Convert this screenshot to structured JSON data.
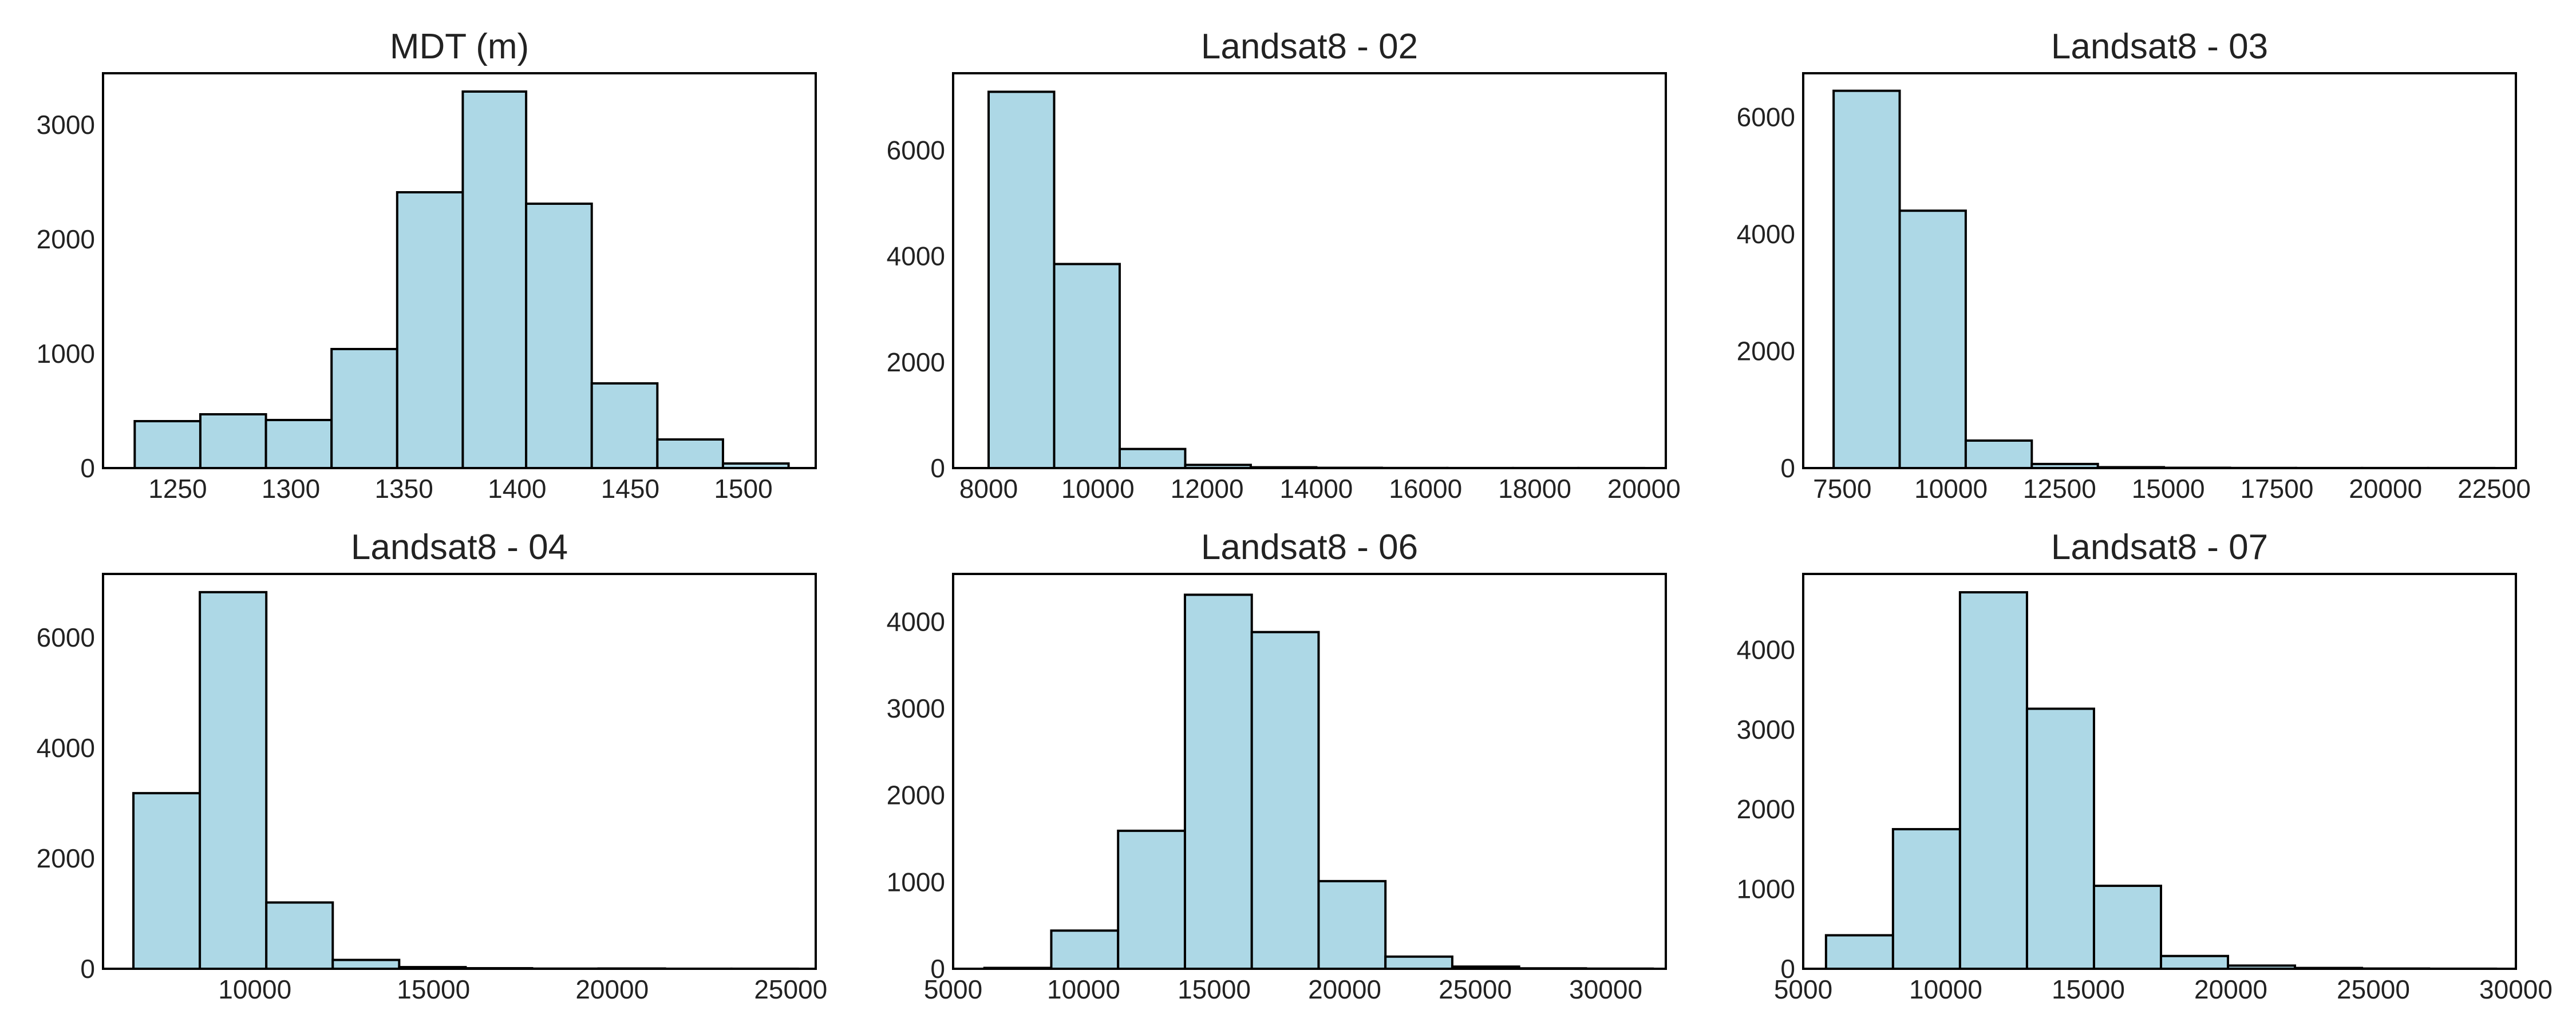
{
  "style": {
    "bar_fill": "#add8e6",
    "bar_edge": "#000000",
    "background": "#ffffff"
  },
  "chart_data": [
    {
      "type": "histogram",
      "title": "MDT (m)",
      "xlim": [
        1217,
        1532
      ],
      "ylim": [
        0,
        3450
      ],
      "xticks": [
        1250,
        1300,
        1350,
        1400,
        1450,
        1500
      ],
      "yticks": [
        0,
        1000,
        2000,
        3000
      ],
      "bin_edges": [
        1231,
        1260,
        1289,
        1318,
        1347,
        1376,
        1404,
        1433,
        1462,
        1491,
        1520
      ],
      "values": [
        410,
        470,
        420,
        1040,
        2410,
        3290,
        2310,
        740,
        250,
        40
      ],
      "grid": false
    },
    {
      "type": "histogram",
      "title": "Landsat8 - 02",
      "xlim": [
        7350,
        20400
      ],
      "ylim": [
        0,
        7450
      ],
      "xticks": [
        8000,
        10000,
        12000,
        14000,
        16000,
        18000,
        20000
      ],
      "yticks": [
        0,
        2000,
        4000,
        6000
      ],
      "bin_edges": [
        8000,
        9200,
        10400,
        11600,
        12800,
        14000,
        15200,
        16400,
        17600,
        18800,
        20000
      ],
      "values": [
        7100,
        3850,
        360,
        60,
        15,
        5,
        2,
        1,
        1,
        1
      ],
      "grid": false
    },
    {
      "type": "histogram",
      "title": "Landsat8 - 03",
      "xlim": [
        6600,
        23000
      ],
      "ylim": [
        0,
        6750
      ],
      "xticks": [
        7500,
        10000,
        12500,
        15000,
        17500,
        20000,
        22500
      ],
      "yticks": [
        0,
        2000,
        4000,
        6000
      ],
      "bin_edges": [
        7300,
        8820,
        10340,
        11860,
        13380,
        14900,
        16420,
        17940,
        19460,
        20980,
        22500
      ],
      "values": [
        6450,
        4400,
        470,
        70,
        15,
        5,
        2,
        1,
        1,
        1
      ],
      "grid": false
    },
    {
      "type": "histogram",
      "title": "Landsat8 - 04",
      "xlim": [
        5750,
        25700
      ],
      "ylim": [
        0,
        7150
      ],
      "xticks": [
        10000,
        15000,
        20000,
        25000
      ],
      "yticks": [
        0,
        2000,
        4000,
        6000
      ],
      "bin_edges": [
        6600,
        8460,
        10320,
        12180,
        14040,
        15900,
        17760,
        19620,
        21480,
        23340,
        25200
      ],
      "values": [
        3180,
        6820,
        1200,
        160,
        30,
        10,
        3,
        5,
        1,
        1
      ],
      "grid": false
    },
    {
      "type": "histogram",
      "title": "Landsat8 - 06",
      "xlim": [
        5000,
        32300
      ],
      "ylim": [
        0,
        4550
      ],
      "xticks": [
        5000,
        10000,
        15000,
        20000,
        25000,
        30000
      ],
      "yticks": [
        0,
        1000,
        2000,
        3000,
        4000
      ],
      "bin_edges": [
        6200,
        8760,
        11320,
        13880,
        16440,
        19000,
        21560,
        24120,
        26680,
        29240,
        31800
      ],
      "values": [
        10,
        440,
        1590,
        4310,
        3880,
        1010,
        140,
        25,
        5,
        2
      ],
      "grid": false
    },
    {
      "type": "histogram",
      "title": "Landsat8 - 07",
      "xlim": [
        5000,
        30000
      ],
      "ylim": [
        0,
        4950
      ],
      "xticks": [
        5000,
        10000,
        15000,
        20000,
        25000,
        30000
      ],
      "yticks": [
        0,
        1000,
        2000,
        3000,
        4000
      ],
      "bin_edges": [
        5800,
        8150,
        10500,
        12850,
        15200,
        17550,
        19900,
        22250,
        24600,
        26950,
        29300
      ],
      "values": [
        420,
        1750,
        4720,
        3260,
        1040,
        160,
        40,
        10,
        3,
        1
      ],
      "grid": false
    }
  ]
}
